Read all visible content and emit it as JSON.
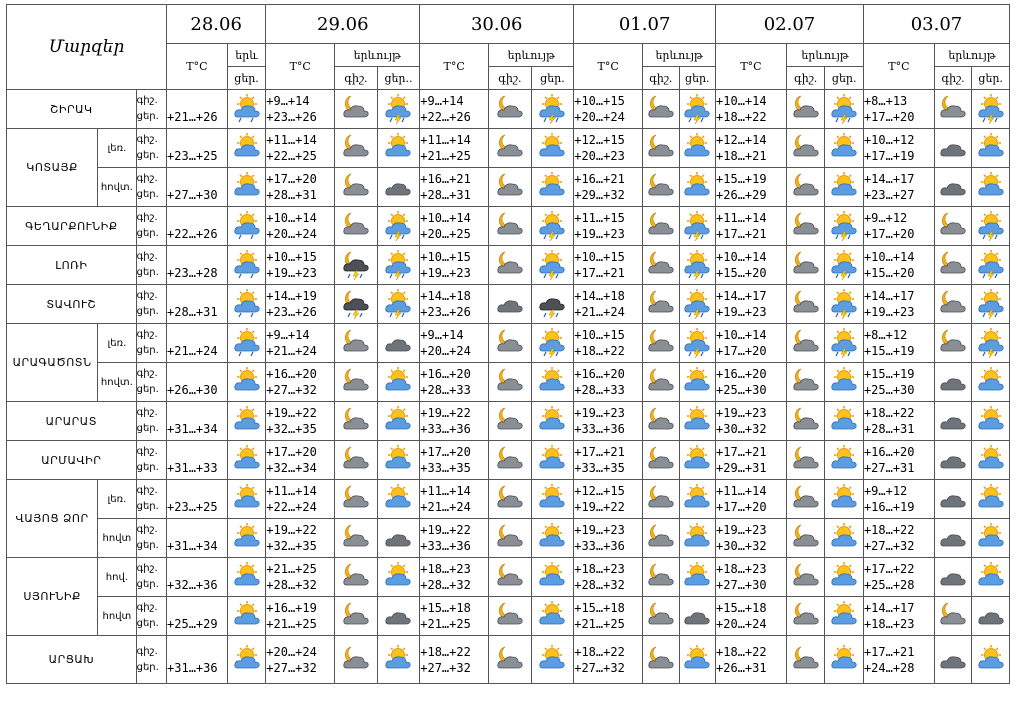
{
  "header": {
    "regions_title": "Մարզեր",
    "temp_label": "T°C",
    "phen_label": "երևույթ",
    "phen_label_short": "երև",
    "night": "գիշ.",
    "day": "ցեր.",
    "day_trunc": "ցեր.."
  },
  "dates": [
    "28.06",
    "29.06",
    "30.06",
    "01.07",
    "02.07",
    "03.07"
  ],
  "rows": [
    {
      "region": "ՇԻՐԱԿ",
      "zone": "",
      "first": "+21…+26",
      "t": [
        [
          "+9…+14",
          "+23…+26"
        ],
        [
          "+9…+14",
          "+22…+26"
        ],
        [
          "+10…+15",
          "+20…+24"
        ],
        [
          "+10…+14",
          "+18…+22"
        ],
        [
          "+8…+13",
          "+17…+20"
        ]
      ],
      "i0": "rain-sun",
      "ic": [
        [
          "moon-cloud",
          "storm-sun"
        ],
        [
          "moon-cloud",
          "storm-sun"
        ],
        [
          "moon-cloud",
          "storm-sun"
        ],
        [
          "moon-cloud",
          "storm-sun"
        ],
        [
          "moon-cloud",
          "storm-sun"
        ]
      ]
    },
    {
      "region": "ԿՈՏԱՅՔ",
      "zone": "լեռ.",
      "first": "+23…+25",
      "t": [
        [
          "+11…+14",
          "+22…+25"
        ],
        [
          "+11…+14",
          "+21…+25"
        ],
        [
          "+12…+15",
          "+20…+23"
        ],
        [
          "+12…+14",
          "+18…+21"
        ],
        [
          "+10…+12",
          "+17…+19"
        ]
      ],
      "i0": "sun-cloud",
      "ic": [
        [
          "moon-cloud",
          "sun-cloud"
        ],
        [
          "moon-cloud",
          "sun-cloud"
        ],
        [
          "moon-cloud",
          "sun-cloud"
        ],
        [
          "moon-cloud",
          "sun-cloud"
        ],
        [
          "dark-cloud",
          "sun-cloud"
        ]
      ]
    },
    {
      "region": "",
      "zone": "հովտ.",
      "first": "+27…+30",
      "t": [
        [
          "+17…+20",
          "+28…+31"
        ],
        [
          "+16…+21",
          "+28…+31"
        ],
        [
          "+16…+21",
          "+29…+32"
        ],
        [
          "+15…+19",
          "+26…+29"
        ],
        [
          "+14…+17",
          "+23…+27"
        ]
      ],
      "i0": "sun-cloud",
      "ic": [
        [
          "moon-cloud",
          "dark-cloud"
        ],
        [
          "moon-cloud",
          "sun-cloud"
        ],
        [
          "moon-cloud",
          "sun-cloud"
        ],
        [
          "moon-cloud",
          "sun-cloud"
        ],
        [
          "dark-cloud",
          "sun-cloud"
        ]
      ]
    },
    {
      "region": "ԳԵՂԱՐՔՈՒՆԻՔ",
      "zone": "",
      "first": "+22…+26",
      "t": [
        [
          "+10…+14",
          "+20…+24"
        ],
        [
          "+10…+14",
          "+20…+25"
        ],
        [
          "+11…+15",
          "+19…+23"
        ],
        [
          "+11…+14",
          "+17…+21"
        ],
        [
          "+9…+12",
          "+17…+20"
        ]
      ],
      "i0": "rain-sun",
      "ic": [
        [
          "moon-cloud",
          "storm-sun"
        ],
        [
          "moon-cloud",
          "storm-sun"
        ],
        [
          "moon-cloud",
          "storm-sun"
        ],
        [
          "moon-cloud",
          "storm-sun"
        ],
        [
          "moon-cloud",
          "storm-sun"
        ]
      ]
    },
    {
      "region": "ԼՈՌԻ",
      "zone": "",
      "first": "+23…+28",
      "t": [
        [
          "+10…+15",
          "+19…+23"
        ],
        [
          "+10…+15",
          "+19…+23"
        ],
        [
          "+10…+15",
          "+17…+21"
        ],
        [
          "+10…+14",
          "+15…+20"
        ],
        [
          "+10…+14",
          "+15…+20"
        ]
      ],
      "i0": "rain-sun",
      "ic": [
        [
          "storm-moon",
          "storm-sun"
        ],
        [
          "moon-cloud",
          "storm-sun"
        ],
        [
          "moon-cloud",
          "storm-sun"
        ],
        [
          "moon-cloud",
          "storm-sun"
        ],
        [
          "moon-cloud",
          "storm-sun"
        ]
      ]
    },
    {
      "region": "ՏԱՎՈՒՇ",
      "zone": "",
      "first": "+28…+31",
      "t": [
        [
          "+14…+19",
          "+23…+26"
        ],
        [
          "+14…+18",
          "+23…+26"
        ],
        [
          "+14…+18",
          "+21…+24"
        ],
        [
          "+14…+17",
          "+19…+23"
        ],
        [
          "+14…+17",
          "+19…+23"
        ]
      ],
      "i0": "rain-sun",
      "ic": [
        [
          "storm-moon",
          "storm-sun"
        ],
        [
          "dark-cloud",
          "rain-cloud"
        ],
        [
          "moon-cloud",
          "storm-sun"
        ],
        [
          "moon-cloud",
          "storm-sun"
        ],
        [
          "moon-cloud",
          "storm-sun"
        ]
      ]
    },
    {
      "region": "ԱՐԱԳԱԾՈՏՆ",
      "zone": "լեռ.",
      "first": "+21…+24",
      "t": [
        [
          "+9…+14",
          "+21…+24"
        ],
        [
          "+9…+14",
          "+20…+24"
        ],
        [
          "+10…+15",
          "+18…+22"
        ],
        [
          "+10…+14",
          "+17…+20"
        ],
        [
          "+8…+12",
          "+15…+19"
        ]
      ],
      "i0": "rain-sun",
      "ic": [
        [
          "moon-cloud",
          "dark-cloud"
        ],
        [
          "moon-cloud",
          "storm-sun"
        ],
        [
          "moon-cloud",
          "storm-sun"
        ],
        [
          "moon-cloud",
          "storm-sun"
        ],
        [
          "moon-cloud",
          "storm-sun"
        ]
      ]
    },
    {
      "region": "",
      "zone": "հովտ.",
      "first": "+26…+30",
      "t": [
        [
          "+16…+20",
          "+27…+32"
        ],
        [
          "+16…+20",
          "+28…+33"
        ],
        [
          "+16…+20",
          "+28…+33"
        ],
        [
          "+16…+20",
          "+25…+30"
        ],
        [
          "+15…+19",
          "+25…+30"
        ]
      ],
      "i0": "sun-cloud",
      "ic": [
        [
          "moon-cloud",
          "sun-cloud"
        ],
        [
          "moon-cloud",
          "sun-cloud"
        ],
        [
          "moon-cloud",
          "sun-cloud"
        ],
        [
          "moon-cloud",
          "sun-cloud"
        ],
        [
          "dark-cloud",
          "sun-cloud"
        ]
      ]
    },
    {
      "region": "ԱՐԱՐԱՏ",
      "zone": "",
      "first": "+31…+34",
      "t": [
        [
          "+19…+22",
          "+32…+35"
        ],
        [
          "+19…+22",
          "+33…+36"
        ],
        [
          "+19…+23",
          "+33…+36"
        ],
        [
          "+19…+23",
          "+30…+32"
        ],
        [
          "+18…+22",
          "+28…+31"
        ]
      ],
      "i0": "sun-cloud",
      "ic": [
        [
          "moon-cloud",
          "sun-cloud"
        ],
        [
          "moon-cloud",
          "sun-cloud"
        ],
        [
          "moon-cloud",
          "sun-cloud"
        ],
        [
          "moon-cloud",
          "sun-cloud"
        ],
        [
          "dark-cloud",
          "sun-cloud"
        ]
      ]
    },
    {
      "region": "ԱՐՄԱՎԻՐ",
      "zone": "",
      "first": "+31…+33",
      "t": [
        [
          "+17…+20",
          "+32…+34"
        ],
        [
          "+17…+20",
          "+33…+35"
        ],
        [
          "+17…+21",
          "+33…+35"
        ],
        [
          "+17…+21",
          "+29…+31"
        ],
        [
          "+16…+20",
          "+27…+31"
        ]
      ],
      "i0": "sun-cloud",
      "ic": [
        [
          "moon-cloud",
          "sun-cloud"
        ],
        [
          "moon-cloud",
          "sun-cloud"
        ],
        [
          "moon-cloud",
          "sun-cloud"
        ],
        [
          "moon-cloud",
          "sun-cloud"
        ],
        [
          "dark-cloud",
          "sun-cloud"
        ]
      ]
    },
    {
      "region": "ՎԱՅՈՑ ՁՈՐ",
      "zone": "լեռ.",
      "first": "+23…+25",
      "t": [
        [
          "+11…+14",
          "+22…+24"
        ],
        [
          "+11…+14",
          "+21…+24"
        ],
        [
          "+12…+15",
          "+19…+22"
        ],
        [
          "+11…+14",
          "+17…+20"
        ],
        [
          "+9…+12",
          "+16…+19"
        ]
      ],
      "i0": "sun-cloud",
      "ic": [
        [
          "moon-cloud",
          "sun-cloud"
        ],
        [
          "moon-cloud",
          "sun-cloud"
        ],
        [
          "moon-cloud",
          "sun-cloud"
        ],
        [
          "moon-cloud",
          "sun-cloud"
        ],
        [
          "dark-cloud",
          "sun-cloud"
        ]
      ]
    },
    {
      "region": "",
      "zone": "հովտ",
      "first": "+31…+34",
      "t": [
        [
          "+19…+22",
          "+32…+35"
        ],
        [
          "+19…+22",
          "+33…+36"
        ],
        [
          "+19…+23",
          "+33…+36"
        ],
        [
          "+19…+23",
          "+30…+32"
        ],
        [
          "+18…+22",
          "+27…+32"
        ]
      ],
      "i0": "sun-cloud",
      "ic": [
        [
          "moon-cloud",
          "dark-cloud"
        ],
        [
          "moon-cloud",
          "sun-cloud"
        ],
        [
          "moon-cloud",
          "sun-cloud"
        ],
        [
          "moon-cloud",
          "sun-cloud"
        ],
        [
          "dark-cloud",
          "sun-cloud"
        ]
      ]
    },
    {
      "region": "ՍՅՈՒՆԻՔ",
      "zone": "հով.",
      "first": "+32…+36",
      "t": [
        [
          "+21…+25",
          "+28…+32"
        ],
        [
          "+18…+23",
          "+28…+32"
        ],
        [
          "+18…+23",
          "+28…+32"
        ],
        [
          "+18…+23",
          "+27…+30"
        ],
        [
          "+17…+22",
          "+25…+28"
        ]
      ],
      "i0": "sun-cloud",
      "ic": [
        [
          "moon-cloud",
          "sun-cloud"
        ],
        [
          "moon-cloud",
          "sun-cloud"
        ],
        [
          "moon-cloud",
          "sun-cloud"
        ],
        [
          "moon-cloud",
          "sun-cloud"
        ],
        [
          "dark-cloud",
          "sun-cloud"
        ]
      ]
    },
    {
      "region": "",
      "zone": "հովտ",
      "first": "+25…+29",
      "t": [
        [
          "+16…+19",
          "+21…+25"
        ],
        [
          "+15…+18",
          "+21…+25"
        ],
        [
          "+15…+18",
          "+21…+25"
        ],
        [
          "+15…+18",
          "+20…+24"
        ],
        [
          "+14…+17",
          "+18…+23"
        ]
      ],
      "i0": "sun-cloud",
      "ic": [
        [
          "moon-cloud",
          "dark-cloud"
        ],
        [
          "moon-cloud",
          "sun-cloud"
        ],
        [
          "moon-cloud",
          "dark-cloud"
        ],
        [
          "moon-cloud",
          "sun-cloud"
        ],
        [
          "moon-cloud",
          "dark-cloud"
        ]
      ]
    },
    {
      "region": "ԱՐՑԱԽ",
      "zone": "",
      "first": "+31…+36",
      "t": [
        [
          "+20…+24",
          "+27…+32"
        ],
        [
          "+18…+22",
          "+27…+32"
        ],
        [
          "+18…+22",
          "+27…+32"
        ],
        [
          "+18…+22",
          "+26…+31"
        ],
        [
          "+17…+21",
          "+24…+28"
        ]
      ],
      "i0": "sun-cloud",
      "ic": [
        [
          "moon-cloud",
          "sun-cloud"
        ],
        [
          "moon-cloud",
          "sun-cloud"
        ],
        [
          "moon-cloud",
          "sun-cloud"
        ],
        [
          "moon-cloud",
          "sun-cloud"
        ],
        [
          "dark-cloud",
          "sun-cloud"
        ]
      ]
    }
  ]
}
